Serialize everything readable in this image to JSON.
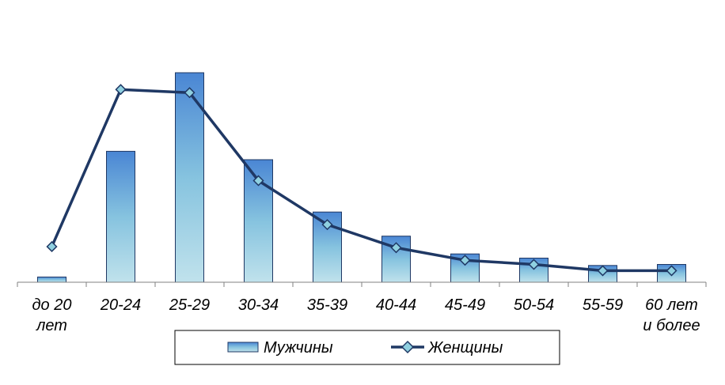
{
  "chart_data": {
    "type": "bar",
    "categories": [
      [
        "до 20",
        "лет"
      ],
      [
        "20-24"
      ],
      [
        "25-29"
      ],
      [
        "30-34"
      ],
      [
        "35-39"
      ],
      [
        "40-44"
      ],
      [
        "45-49"
      ],
      [
        "50-54"
      ],
      [
        "55-59"
      ],
      [
        "60 лет",
        "и более"
      ]
    ],
    "ylim": [
      0,
      100
    ],
    "grid": false,
    "legend_position": "bottom",
    "series": [
      {
        "name": "Мужчины",
        "kind": "bar",
        "color": "#4a86c8",
        "values": [
          2.5,
          62.5,
          100,
          58.5,
          33.5,
          22,
          13.5,
          11.5,
          8,
          8.5
        ]
      },
      {
        "name": "Женщины",
        "kind": "line",
        "color": "#1f3864",
        "marker_color": "#8fd0e0",
        "values": [
          17,
          92,
          90.5,
          48.5,
          27.5,
          16.5,
          10.5,
          8.5,
          5.5,
          5.5
        ]
      }
    ]
  }
}
